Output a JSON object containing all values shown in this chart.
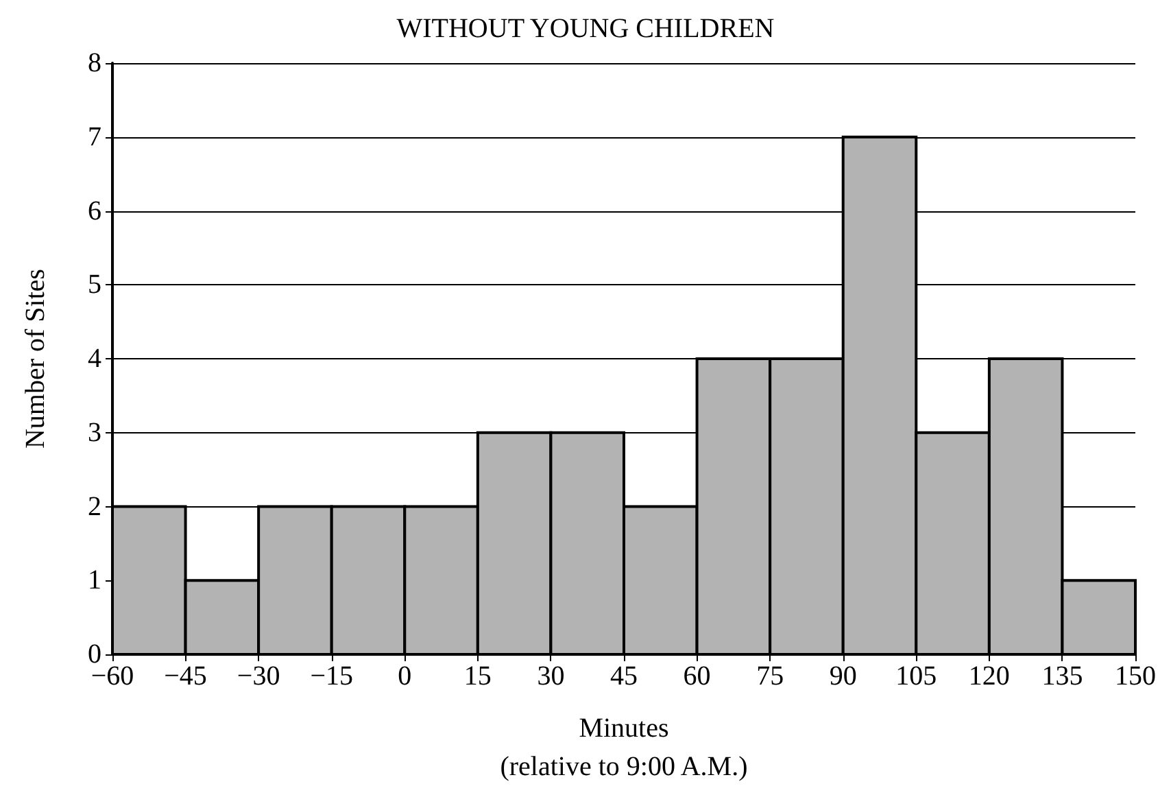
{
  "chart_data": {
    "type": "histogram",
    "title": "WITHOUT YOUNG CHILDREN",
    "xlabel": "Minutes\n(relative to 9:00 A.M.)",
    "ylabel": "Number of Sites",
    "bins": [
      -60,
      -45,
      -30,
      -15,
      0,
      15,
      30,
      45,
      60,
      75,
      90,
      105,
      120,
      135,
      150
    ],
    "values": [
      2,
      1,
      2,
      2,
      2,
      3,
      3,
      2,
      4,
      4,
      7,
      3,
      4,
      1
    ],
    "color": "#b3b3b3",
    "xlim": [
      -60,
      150
    ],
    "xticks": [
      -60,
      -45,
      -30,
      -15,
      0,
      15,
      30,
      45,
      60,
      75,
      90,
      105,
      120,
      135,
      150
    ],
    "ylim": [
      0,
      8
    ],
    "yticks": [
      0,
      1,
      2,
      3,
      4,
      5,
      6,
      7,
      8
    ],
    "grid": "y"
  }
}
